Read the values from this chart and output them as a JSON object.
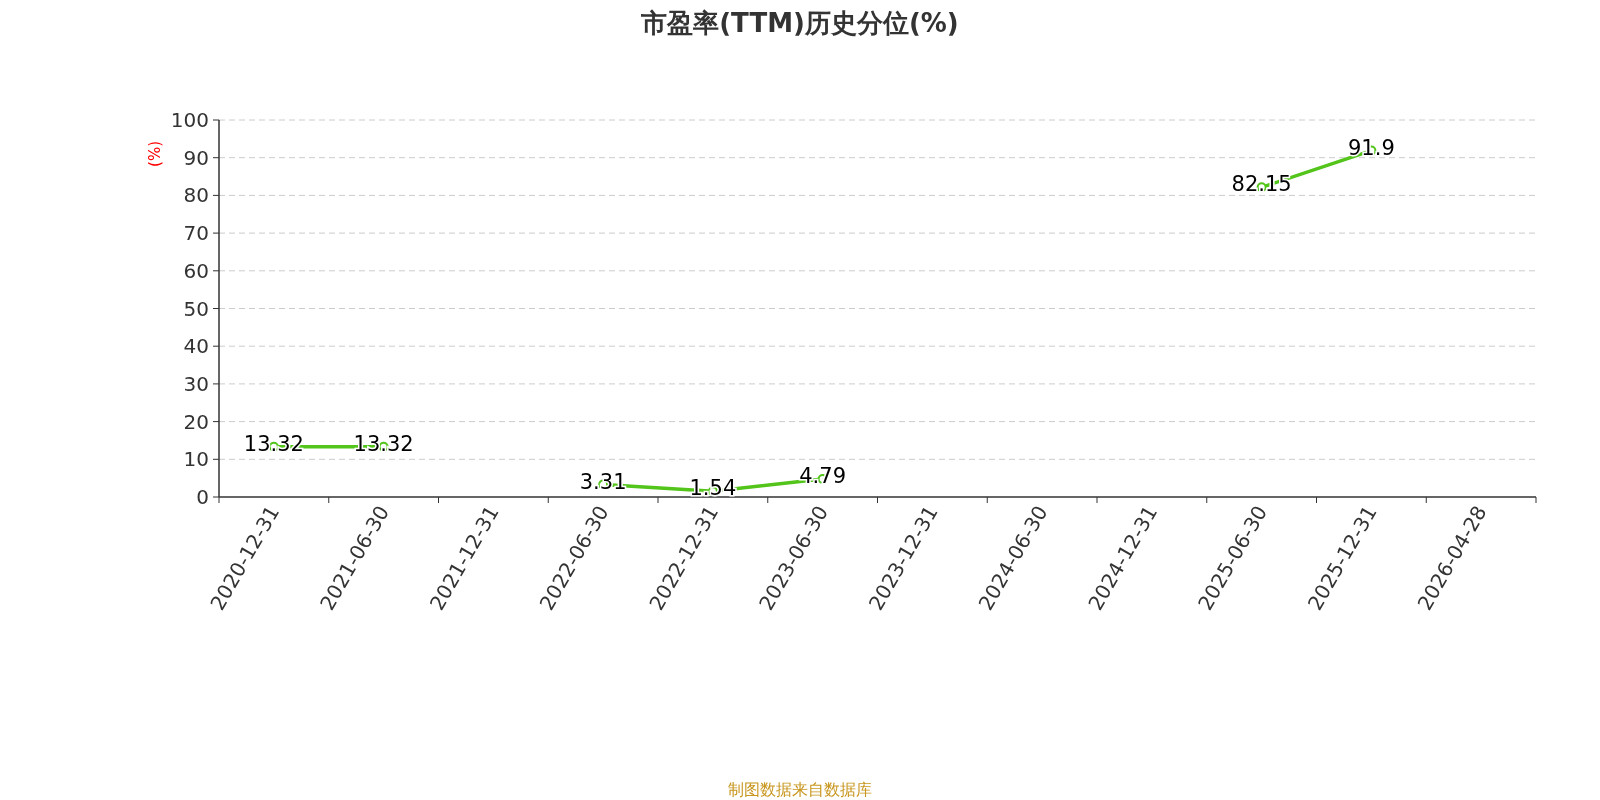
{
  "chart_data": {
    "type": "line",
    "title": "市盈率(TTM)历史分位(%)",
    "ylabel": "(%)",
    "categories": [
      "2020-12-31",
      "2021-06-30",
      "2021-12-31",
      "2022-06-30",
      "2022-12-31",
      "2023-06-30",
      "2023-12-31",
      "2024-06-30",
      "2024-12-31",
      "2025-06-30",
      "2025-12-31",
      "2026-04-28"
    ],
    "series": [
      {
        "color": "#52c41a",
        "values": [
          13.32,
          13.32,
          null,
          3.31,
          1.54,
          4.79,
          null,
          null,
          null,
          82.15,
          91.9,
          null
        ]
      }
    ],
    "ylim": [
      0,
      100
    ],
    "yticks": [
      0,
      10,
      20,
      30,
      40,
      50,
      60,
      70,
      80,
      90,
      100
    ],
    "grid": "y",
    "marker": "circle",
    "line_style": "solid",
    "data_labels": true,
    "annotations": [
      "制图数据来自数据库"
    ]
  }
}
